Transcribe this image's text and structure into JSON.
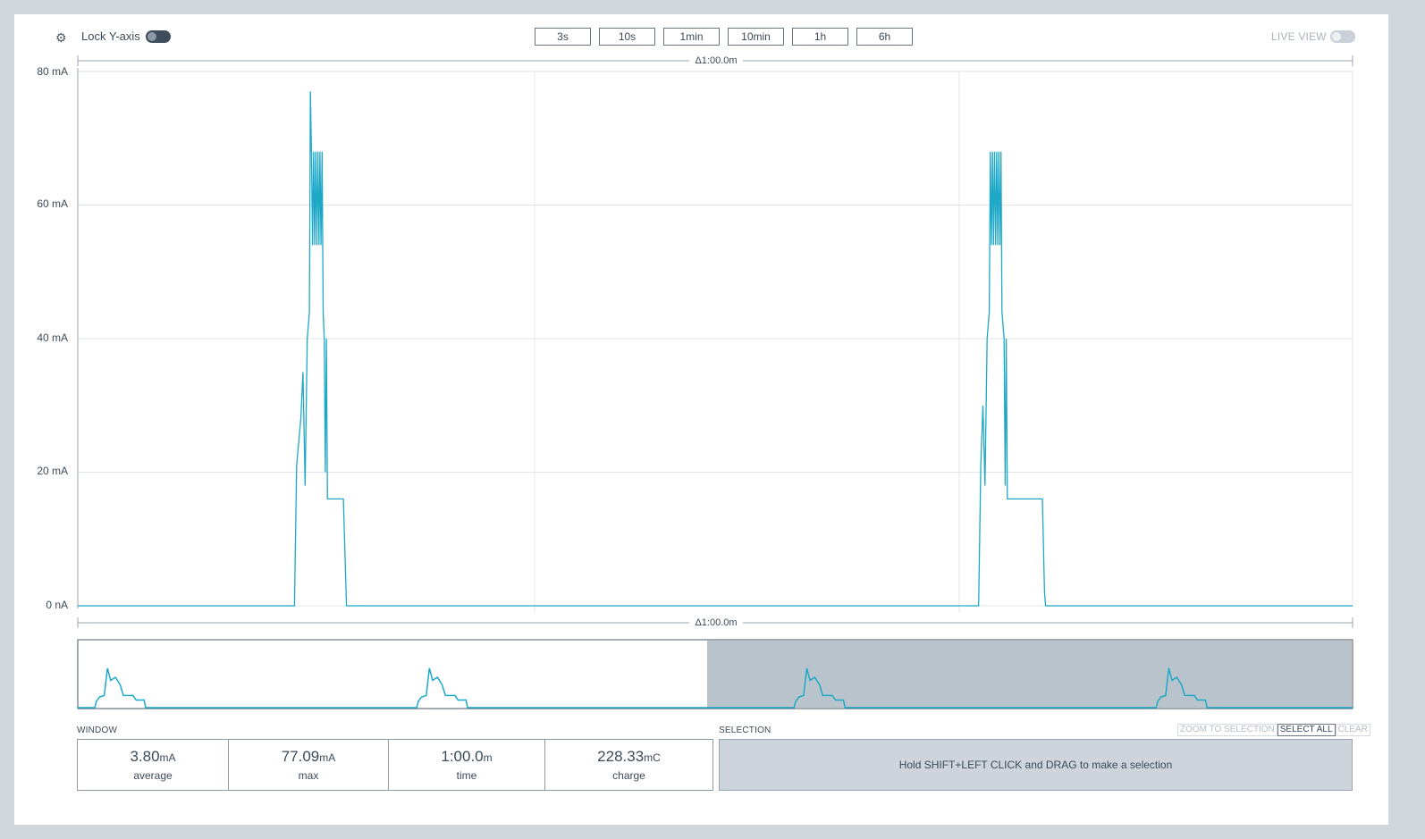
{
  "toolbar": {
    "lock_label": "Lock Y-axis",
    "lock_on": true,
    "zoom_buttons": [
      "3s",
      "10s",
      "1min",
      "10min",
      "1h",
      "6h"
    ],
    "live_label": "LIVE VIEW",
    "live_on": false
  },
  "chart": {
    "top_delta": "Δ1:00.0m",
    "bottom_delta": "Δ1:00.0m",
    "y_ticks": [
      "80 mA",
      "60 mA",
      "40 mA",
      "20 mA",
      "0 nA"
    ],
    "line_color": "#1ea8c8"
  },
  "chart_data": {
    "type": "line",
    "series": [
      {
        "values_desc": "current over a 1 min window",
        "points": [
          [
            0,
            0
          ],
          [
            10.2,
            0
          ],
          [
            10.3,
            21
          ],
          [
            10.5,
            28
          ],
          [
            10.6,
            35
          ],
          [
            10.7,
            18
          ],
          [
            10.8,
            40
          ],
          [
            10.9,
            44
          ],
          [
            10.95,
            77
          ],
          [
            11.0,
            68
          ],
          [
            11.05,
            54
          ],
          [
            11.1,
            68
          ],
          [
            11.15,
            54
          ],
          [
            11.2,
            68
          ],
          [
            11.25,
            54
          ],
          [
            11.3,
            68
          ],
          [
            11.35,
            54
          ],
          [
            11.4,
            68
          ],
          [
            11.45,
            54
          ],
          [
            11.5,
            68
          ],
          [
            11.55,
            44
          ],
          [
            11.6,
            40
          ],
          [
            11.65,
            20
          ],
          [
            11.7,
            40
          ],
          [
            11.75,
            16
          ],
          [
            12.5,
            16
          ],
          [
            12.6,
            5
          ],
          [
            12.65,
            0
          ],
          [
            42.4,
            0
          ],
          [
            42.5,
            21
          ],
          [
            42.6,
            30
          ],
          [
            42.7,
            18
          ],
          [
            42.8,
            40
          ],
          [
            42.9,
            44
          ],
          [
            42.95,
            68
          ],
          [
            43.0,
            54
          ],
          [
            43.05,
            68
          ],
          [
            43.1,
            54
          ],
          [
            43.15,
            68
          ],
          [
            43.2,
            54
          ],
          [
            43.25,
            68
          ],
          [
            43.3,
            54
          ],
          [
            43.35,
            68
          ],
          [
            43.4,
            54
          ],
          [
            43.45,
            68
          ],
          [
            43.5,
            44
          ],
          [
            43.6,
            40
          ],
          [
            43.65,
            18
          ],
          [
            43.7,
            40
          ],
          [
            43.75,
            16
          ],
          [
            45.4,
            16
          ],
          [
            45.5,
            2
          ],
          [
            45.55,
            0
          ],
          [
            60,
            0
          ]
        ]
      }
    ],
    "ylim": [
      0,
      80
    ],
    "xlim": [
      0,
      60
    ],
    "ylabel_ticks": [
      "80 mA",
      "60 mA",
      "40 mA",
      "20 mA",
      "0 nA"
    ]
  },
  "window": {
    "title": "WINDOW",
    "stats": [
      {
        "value": "3.80",
        "unit": "mA",
        "label": "average"
      },
      {
        "value": "77.09",
        "unit": "mA",
        "label": "max"
      },
      {
        "value": "1:00.0",
        "unit": "m",
        "label": "time"
      },
      {
        "value": "228.33",
        "unit": "mC",
        "label": "charge"
      }
    ]
  },
  "selection": {
    "title": "SELECTION",
    "hint": "Hold SHIFT+LEFT CLICK and DRAG to make a selection",
    "buttons": [
      "ZOOM TO SELECTION",
      "SELECT ALL",
      "CLEAR"
    ]
  }
}
